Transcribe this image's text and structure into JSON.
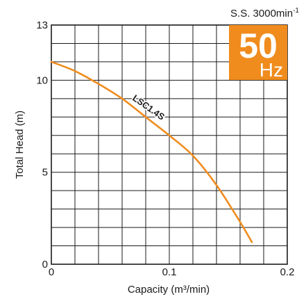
{
  "speed_label": {
    "main": "S.S. 3000min",
    "sup": "-1"
  },
  "badge": {
    "value": "50",
    "unit": "Hz",
    "color": "#f08c1e"
  },
  "chart_data": {
    "type": "line",
    "xlabel": "Capacity (m³/min)",
    "ylabel": "Total Head (m)",
    "xlim": [
      0,
      0.2
    ],
    "ylim": [
      0,
      13
    ],
    "x_tick_labels": [
      "0",
      "0.1",
      "0.2"
    ],
    "y_tick_labels": [
      "0",
      "5",
      "10",
      "13"
    ],
    "grid": true,
    "series": [
      {
        "name": "LSC1.4S",
        "color": "#f08c1e",
        "x": [
          0,
          0.02,
          0.04,
          0.06,
          0.08,
          0.1,
          0.12,
          0.14,
          0.16,
          0.17
        ],
        "y": [
          11.0,
          10.5,
          9.8,
          9.0,
          8.0,
          7.0,
          5.9,
          4.3,
          2.3,
          1.2
        ]
      }
    ]
  }
}
